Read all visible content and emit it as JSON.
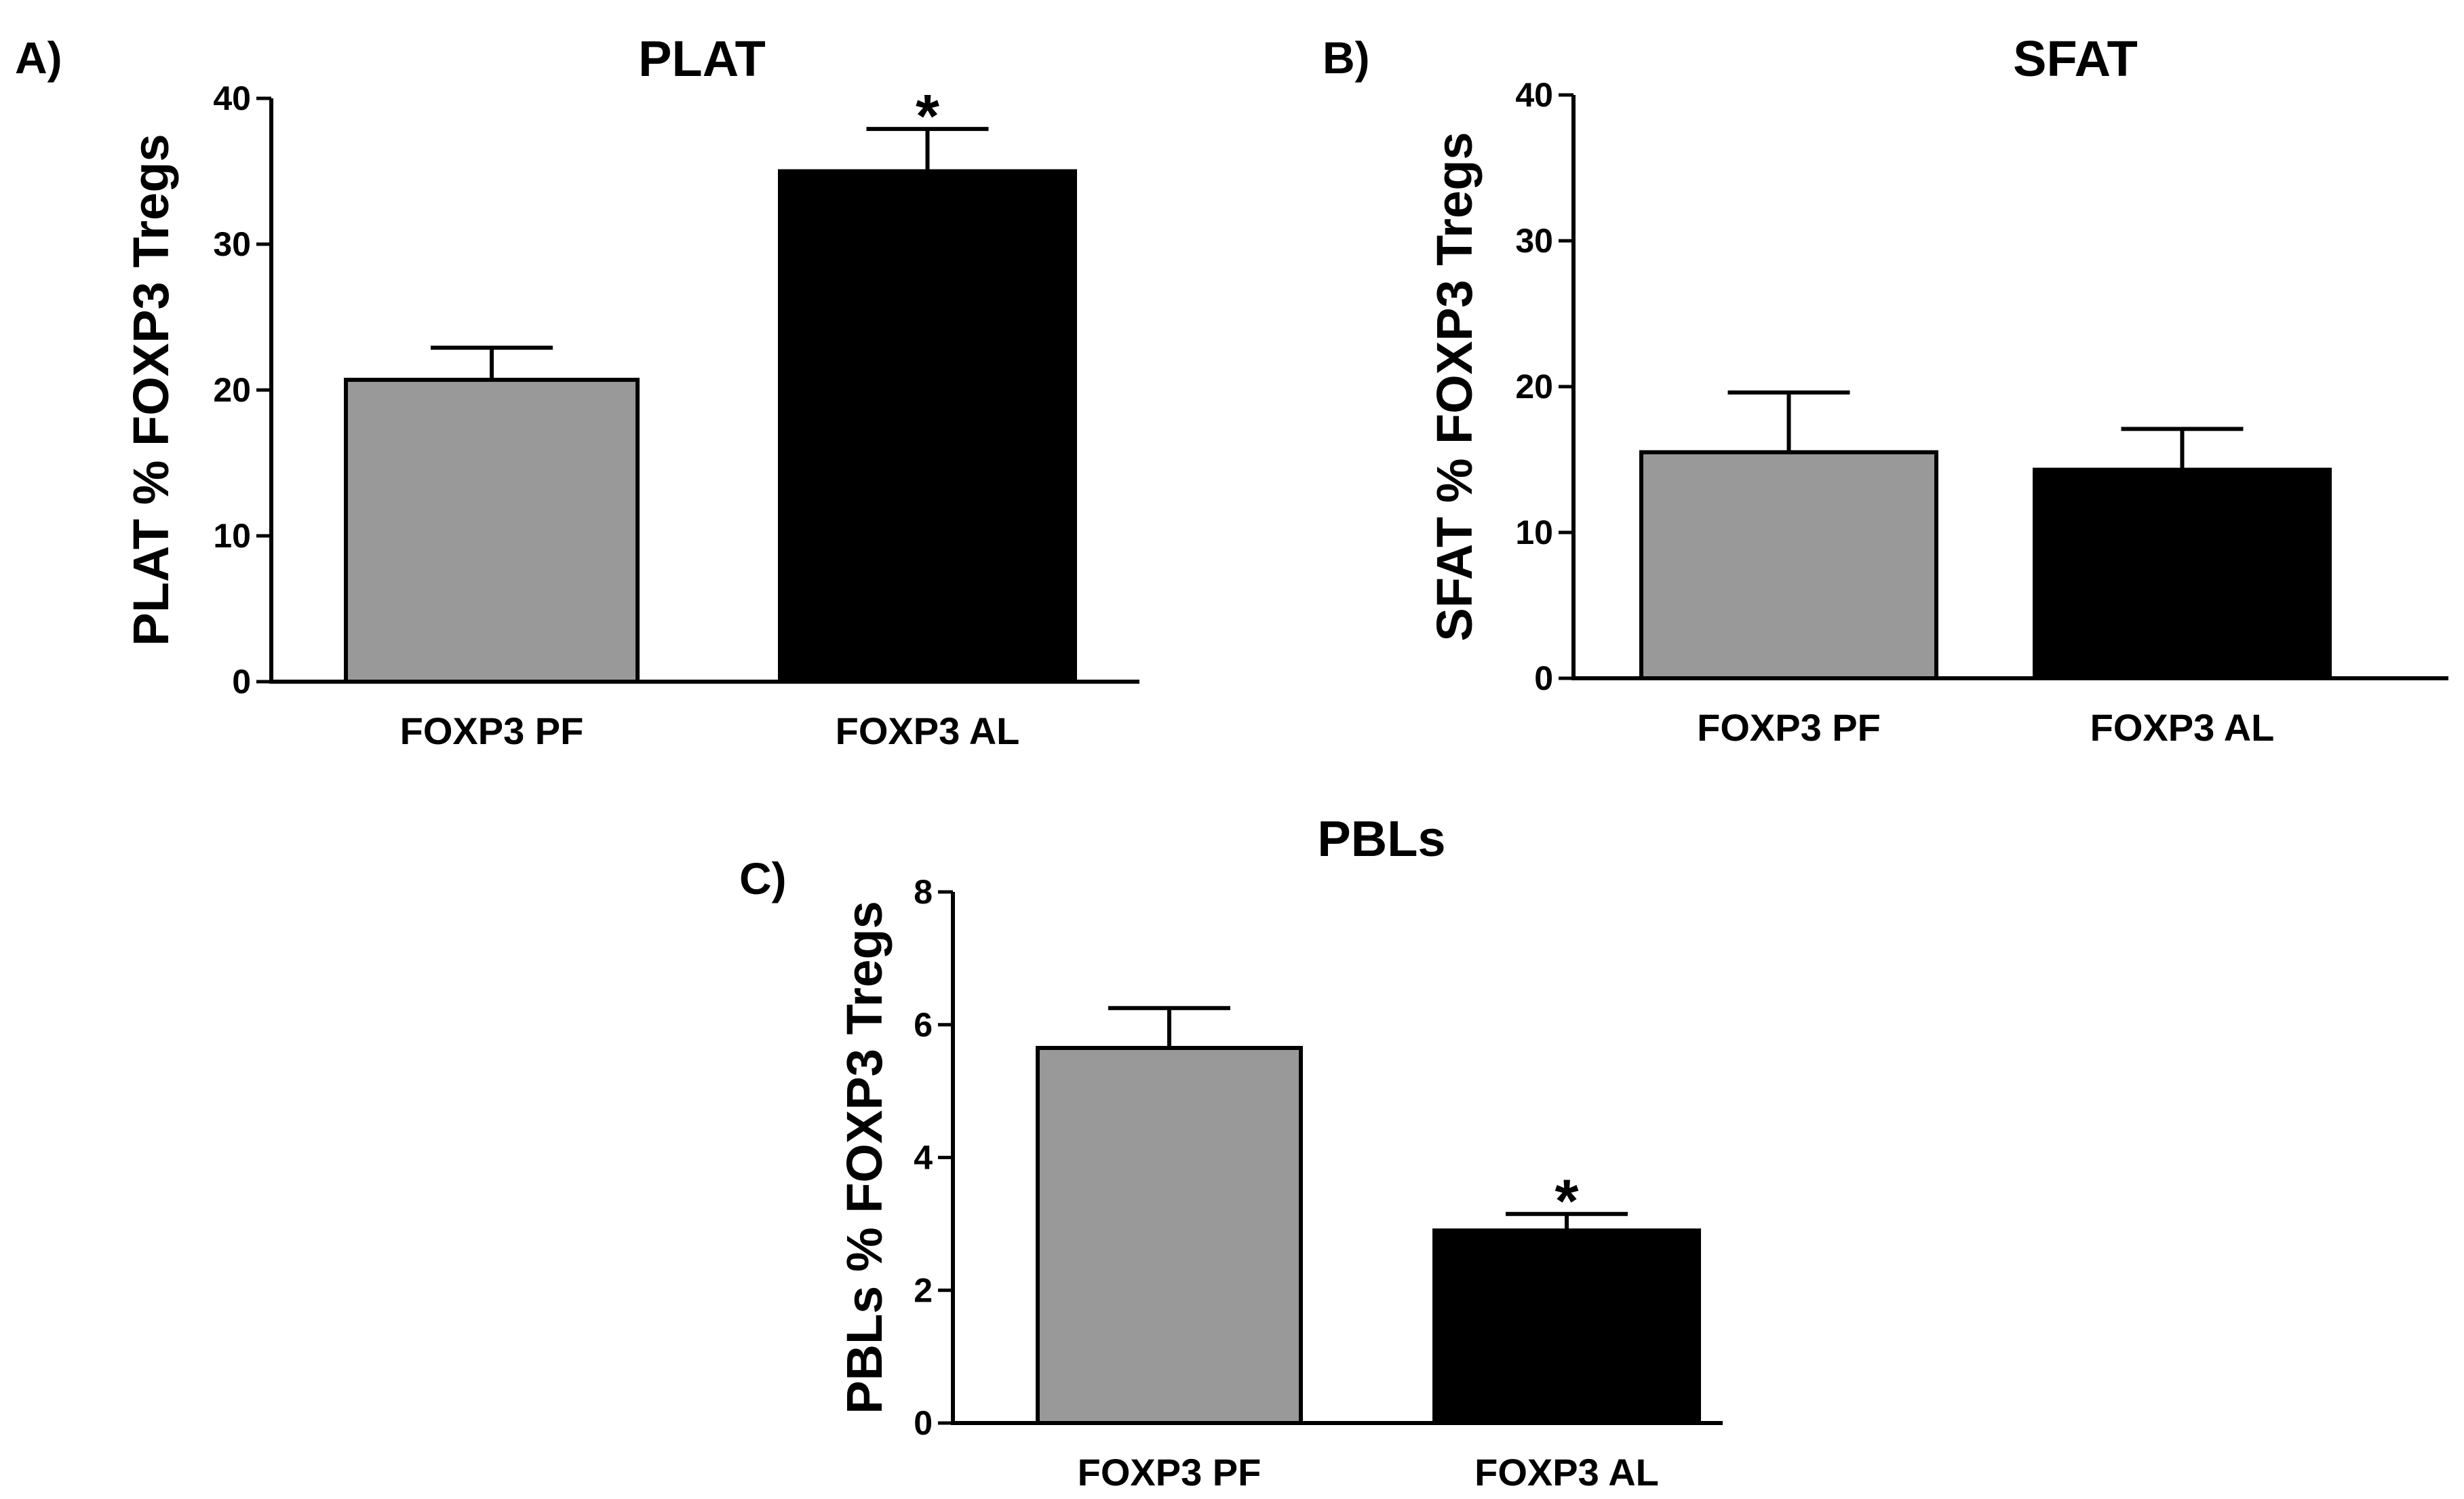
{
  "chart_data": [
    {
      "type": "bar",
      "panel_label": "A)",
      "title": "PLAT",
      "xlabel": "",
      "ylabel": "PLAT % FOXP3 Tregs",
      "ylim": [
        0,
        40
      ],
      "yticks": [
        0,
        10,
        20,
        30,
        40
      ],
      "grid": false,
      "categories": [
        "FOXP3 PF",
        "FOXP3 AL"
      ],
      "values": [
        20.7,
        35.0
      ],
      "errors": [
        2.2,
        2.9
      ],
      "significance": [
        "",
        "*"
      ],
      "bar_colors": [
        "#999999",
        "#000000"
      ]
    },
    {
      "type": "bar",
      "panel_label": "B)",
      "title": "SFAT",
      "xlabel": "",
      "ylabel": "SFAT % FOXP3 Tregs",
      "ylim": [
        0,
        40
      ],
      "yticks": [
        0,
        10,
        20,
        30,
        40
      ],
      "grid": false,
      "categories": [
        "FOXP3 PF",
        "FOXP3 AL"
      ],
      "values": [
        15.5,
        14.3
      ],
      "errors": [
        4.1,
        2.8
      ],
      "significance": [
        "",
        ""
      ],
      "bar_colors": [
        "#999999",
        "#000000"
      ]
    },
    {
      "type": "bar",
      "panel_label": "C)",
      "title": "PBLs",
      "xlabel": "",
      "ylabel": "PBLs % FOXP3 Tregs",
      "ylim": [
        0,
        8
      ],
      "yticks": [
        0,
        2,
        4,
        6,
        8
      ],
      "grid": false,
      "categories": [
        "FOXP3 PF",
        "FOXP3 AL"
      ],
      "values": [
        5.65,
        2.9
      ],
      "errors": [
        0.6,
        0.25
      ],
      "significance": [
        "",
        "*"
      ],
      "bar_colors": [
        "#999999",
        "#000000"
      ]
    }
  ]
}
